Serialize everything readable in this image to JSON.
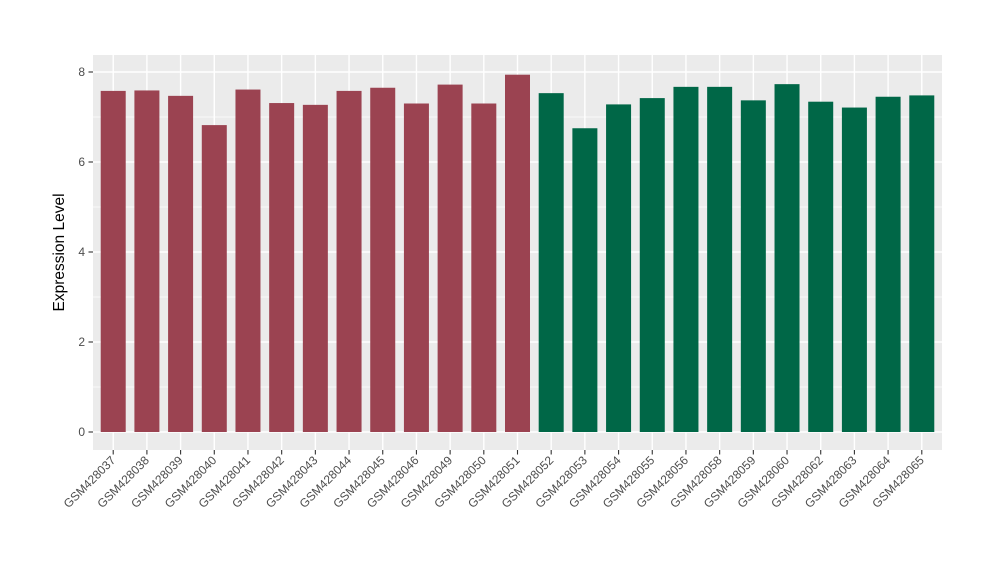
{
  "chart_data": {
    "type": "bar",
    "title": "",
    "xlabel": "",
    "ylabel": "Expression Level",
    "categories": [
      "GSM428037",
      "GSM428038",
      "GSM428039",
      "GSM428040",
      "GSM428041",
      "GSM428042",
      "GSM428043",
      "GSM428044",
      "GSM428045",
      "GSM428046",
      "GSM428049",
      "GSM428050",
      "GSM428051",
      "GSM428052",
      "GSM428053",
      "GSM428054",
      "GSM428055",
      "GSM428056",
      "GSM428058",
      "GSM428059",
      "GSM428060",
      "GSM428062",
      "GSM428063",
      "GSM428064",
      "GSM428065"
    ],
    "values": [
      7.58,
      7.59,
      7.47,
      6.82,
      7.61,
      7.31,
      7.27,
      7.58,
      7.65,
      7.3,
      7.72,
      7.3,
      7.94,
      7.53,
      6.75,
      7.28,
      7.42,
      7.67,
      7.67,
      7.37,
      7.73,
      7.34,
      7.21,
      7.45,
      7.48
    ],
    "groups": [
      {
        "name": "left-group",
        "color": "#9B4351",
        "count": 13
      },
      {
        "name": "right-group",
        "color": "#006747",
        "count": 12
      }
    ],
    "yticks": [
      0,
      2,
      4,
      6,
      8
    ],
    "minor_yticks": [
      1,
      3,
      5,
      7
    ],
    "ylim": [
      -0.4,
      8.38
    ],
    "grid": true,
    "legend": "none",
    "colors": {
      "panel_background": "#EBEBEB",
      "gridline": "#FFFFFF",
      "tick_label": "#4D4D4D",
      "axis_title": "#000000",
      "tick_mark": "#333333",
      "page_background": "#FFFFFF"
    }
  }
}
